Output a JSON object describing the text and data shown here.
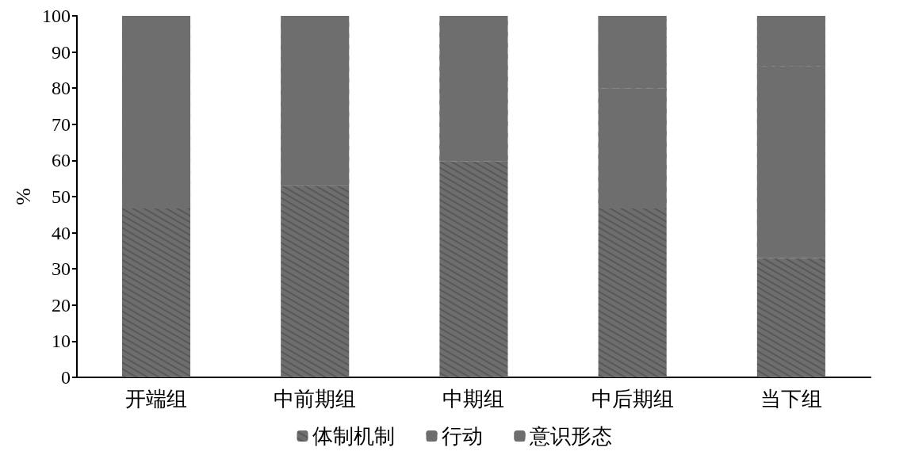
{
  "chart_data": {
    "type": "bar",
    "stacked": true,
    "ylabel": "%",
    "categories": [
      "开端组",
      "中前期组",
      "中期组",
      "中后期组",
      "当下组"
    ],
    "series": [
      {
        "name": "体制机制",
        "color": "#6e6e6e",
        "values": [
          46.7,
          53,
          59.7,
          46.7,
          33
        ]
      },
      {
        "name": "行动",
        "color": "#6e6e6e",
        "values": [
          53.3,
          47,
          40.3,
          33.3,
          53
        ]
      },
      {
        "name": "意识形态",
        "color": "#6e6e6e",
        "values": [
          0,
          0,
          0,
          20,
          14
        ]
      }
    ],
    "ylim": [
      0,
      100
    ],
    "yticks": [
      0,
      10,
      20,
      30,
      40,
      50,
      60,
      70,
      80,
      90,
      100
    ],
    "grid": false,
    "legend": "bottom"
  }
}
